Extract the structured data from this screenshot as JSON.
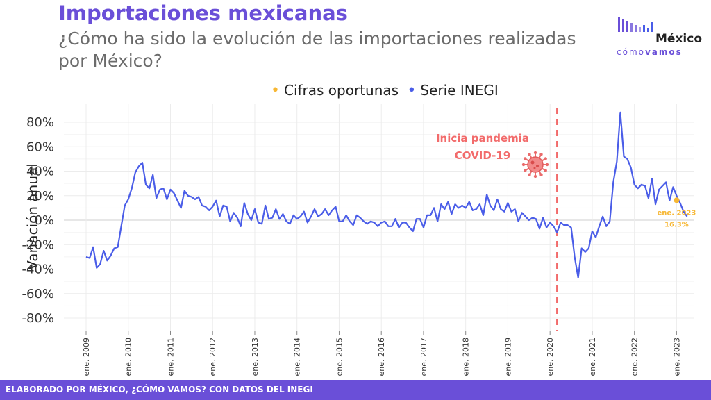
{
  "header": {
    "title": "Importaciones mexicanas",
    "subtitle": "¿Cómo ha sido la evolución de las importaciones realizadas por México?"
  },
  "logo": {
    "top": "México",
    "bottom_light": "cómo",
    "bottom_bold": "vamos"
  },
  "footer": {
    "text": "ELABORADO POR MÉXICO, ¿CÓMO VAMOS? CON DATOS DEL INEGI"
  },
  "colors": {
    "series": "#4a5de8",
    "oportunas": "#f7b733",
    "pandemia": "#f26b6b",
    "brand": "#6a4fd8"
  },
  "chart_data": {
    "type": "line",
    "title": "Importaciones mexicanas",
    "ylabel": "Variación anual",
    "ylim": [
      -90,
      90
    ],
    "yticks": [
      80,
      60,
      40,
      20,
      0,
      -20,
      -40,
      -60,
      -80
    ],
    "ytick_labels": [
      "80%",
      "60%",
      "40%",
      "20%",
      "0%",
      "-20%",
      "-40%",
      "-60%",
      "-80%"
    ],
    "xticks": [
      {
        "year": 2009,
        "label": "ene. 2009"
      },
      {
        "year": 2010,
        "label": "ene. 2010"
      },
      {
        "year": 2011,
        "label": "ene. 2011"
      },
      {
        "year": 2012,
        "label": "ene. 2012"
      },
      {
        "year": 2013,
        "label": "ene. 2013"
      },
      {
        "year": 2014,
        "label": "ene. 2014"
      },
      {
        "year": 2015,
        "label": "ene. 2015"
      },
      {
        "year": 2016,
        "label": "ene. 2016"
      },
      {
        "year": 2017,
        "label": "ene. 2017"
      },
      {
        "year": 2018,
        "label": "ene. 2018"
      },
      {
        "year": 2019,
        "label": "ene. 2019"
      },
      {
        "year": 2020,
        "label": "ene. 2020"
      },
      {
        "year": 2021,
        "label": "ene. 2021"
      },
      {
        "year": 2022,
        "label": "ene. 2022"
      },
      {
        "year": 2023,
        "label": "ene. 2023"
      }
    ],
    "legend": [
      {
        "name": "Cifras oportunas",
        "color": "#f7b733"
      },
      {
        "name": "Serie INEGI",
        "color": "#4a5de8"
      }
    ],
    "legend_position": "top",
    "grid": true,
    "series": [
      {
        "name": "Serie INEGI",
        "start": "ene. 2009",
        "frequency": "monthly",
        "values": [
          -30,
          -31,
          -22,
          -39,
          -36,
          -25,
          -33,
          -29,
          -23,
          -22,
          -5,
          12,
          17,
          26,
          39,
          44,
          47,
          29,
          26,
          37,
          18,
          25,
          26,
          17,
          25,
          22,
          16,
          10,
          24,
          20,
          19,
          17,
          19,
          12,
          11,
          8,
          11,
          16,
          3,
          12,
          11,
          -1,
          6,
          2,
          -5,
          14,
          5,
          0,
          9,
          -2,
          -3,
          12,
          1,
          2,
          9,
          1,
          5,
          -1,
          -3,
          4,
          1,
          3,
          7,
          -2,
          3,
          9,
          3,
          5,
          9,
          4,
          8,
          11,
          -1,
          -1,
          4,
          -1,
          -4,
          4,
          2,
          -1,
          -3,
          -1,
          -2,
          -5,
          -2,
          -1,
          -5,
          -5,
          1,
          -6,
          -2,
          -2,
          -6,
          -9,
          1,
          1,
          -6,
          4,
          4,
          10,
          -1,
          13,
          9,
          15,
          5,
          13,
          10,
          12,
          10,
          15,
          8,
          9,
          13,
          4,
          21,
          12,
          8,
          17,
          9,
          7,
          14,
          7,
          9,
          -1,
          6,
          3,
          0,
          2,
          1,
          -7,
          2,
          -6,
          -2,
          -5,
          -10,
          -2,
          -4,
          -4,
          -6,
          -30,
          -47,
          -23,
          -26,
          -23,
          -9,
          -14,
          -5,
          3,
          -5,
          -1,
          31,
          48,
          88,
          52,
          50,
          43,
          29,
          26,
          29,
          28,
          18,
          34,
          13,
          25,
          28,
          31,
          16,
          27,
          20,
          14,
          7,
          3
        ]
      }
    ],
    "oportunas": {
      "label": "ene. 2023",
      "value": 16.3,
      "value_label": "16.3%",
      "month_index": 168
    },
    "pandemia": {
      "label_line1": "Inicia pandemia",
      "label_line2": "COVID-19",
      "month_index": 134
    }
  }
}
